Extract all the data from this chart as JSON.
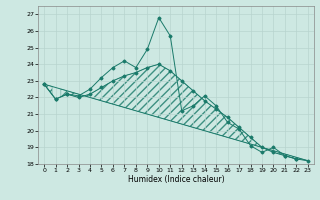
{
  "xlabel": "Humidex (Indice chaleur)",
  "ylabel": "",
  "bg_color": "#cde8e2",
  "grid_color": "#b8d4cf",
  "line_color": "#1a7a6a",
  "xlim": [
    -0.5,
    23.5
  ],
  "ylim": [
    18,
    27.5
  ],
  "yticks": [
    18,
    19,
    20,
    21,
    22,
    23,
    24,
    25,
    26,
    27
  ],
  "xticks": [
    0,
    1,
    2,
    3,
    4,
    5,
    6,
    7,
    8,
    9,
    10,
    11,
    12,
    13,
    14,
    15,
    16,
    17,
    18,
    19,
    20,
    21,
    22,
    23
  ],
  "series1_x": [
    0,
    1,
    2,
    3,
    4,
    5,
    6,
    7,
    8,
    9,
    10,
    11,
    12,
    13,
    14,
    15,
    16,
    17,
    18,
    19,
    20,
    21,
    22
  ],
  "series1_y": [
    22.8,
    21.9,
    22.2,
    22.1,
    22.5,
    23.2,
    23.8,
    24.2,
    23.8,
    24.9,
    26.8,
    25.7,
    21.2,
    21.5,
    22.1,
    21.5,
    20.5,
    20.1,
    19.1,
    18.7,
    19.0,
    18.5,
    18.3
  ],
  "series2_x": [
    0,
    1,
    2,
    3,
    4,
    5,
    6,
    7,
    8,
    9,
    10,
    11,
    12,
    13,
    14,
    15,
    16,
    17,
    18,
    19,
    20,
    21,
    22,
    23
  ],
  "series2_y": [
    22.8,
    21.9,
    22.2,
    22.0,
    22.2,
    22.6,
    23.0,
    23.3,
    23.5,
    23.8,
    24.0,
    23.6,
    23.0,
    22.4,
    21.8,
    21.3,
    20.8,
    20.2,
    19.6,
    19.0,
    18.7,
    18.5,
    18.3,
    18.2
  ],
  "series3_x": [
    0,
    23
  ],
  "series3_y": [
    22.8,
    18.2
  ],
  "hatch_start": 10,
  "hatch_end": 23
}
